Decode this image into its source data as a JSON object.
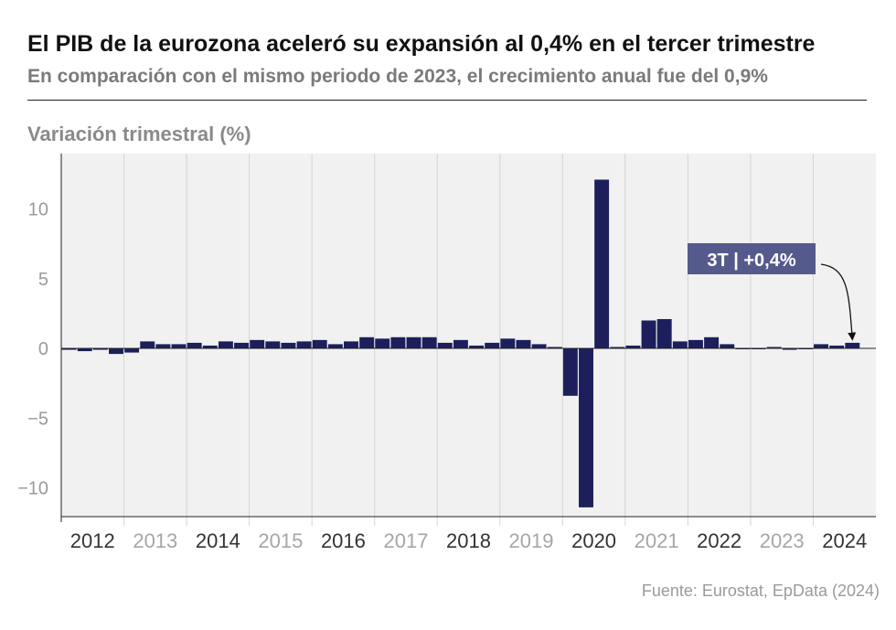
{
  "header": {
    "title": "El PIB de la eurozona aceleró su expansión al 0,4% en el tercer trimestre",
    "subtitle": "En comparación con el mismo periodo de 2023, el crecimiento anual fue del 0,9%"
  },
  "footer": {
    "source": "Fuente: Eurostat, EpData (2024)"
  },
  "colors": {
    "bar": "#1c1f5c",
    "callout": "#555a8c",
    "plot_bg": "#f1f1f1",
    "year_dark": "#333333",
    "year_light": "#a6a6a6"
  },
  "chart_data": {
    "type": "bar",
    "ylabel": "Variación trimestral (%)",
    "ylim": [
      -12,
      13.5
    ],
    "yticks": [
      10,
      5,
      0,
      -5,
      -10
    ],
    "ytick_labels": [
      "10",
      "5",
      "0",
      "−5",
      "−10"
    ],
    "years": [
      "2012",
      "2013",
      "2014",
      "2015",
      "2016",
      "2017",
      "2018",
      "2019",
      "2020",
      "2021",
      "2022",
      "2023",
      "2024"
    ],
    "quarters": [
      "2012T1",
      "2012T2",
      "2012T3",
      "2012T4",
      "2013T1",
      "2013T2",
      "2013T3",
      "2013T4",
      "2014T1",
      "2014T2",
      "2014T3",
      "2014T4",
      "2015T1",
      "2015T2",
      "2015T3",
      "2015T4",
      "2016T1",
      "2016T2",
      "2016T3",
      "2016T4",
      "2017T1",
      "2017T2",
      "2017T3",
      "2017T4",
      "2018T1",
      "2018T2",
      "2018T3",
      "2018T4",
      "2019T1",
      "2019T2",
      "2019T3",
      "2019T4",
      "2020T1",
      "2020T2",
      "2020T3",
      "2020T4",
      "2021T1",
      "2021T2",
      "2021T3",
      "2021T4",
      "2022T1",
      "2022T2",
      "2022T3",
      "2022T4",
      "2023T1",
      "2023T2",
      "2023T3",
      "2023T4",
      "2024T1",
      "2024T2",
      "2024T3"
    ],
    "values": [
      -0.1,
      -0.2,
      -0.1,
      -0.4,
      -0.3,
      0.5,
      0.3,
      0.3,
      0.4,
      0.2,
      0.5,
      0.4,
      0.6,
      0.5,
      0.4,
      0.5,
      0.6,
      0.3,
      0.5,
      0.8,
      0.7,
      0.8,
      0.8,
      0.8,
      0.4,
      0.6,
      0.2,
      0.4,
      0.7,
      0.6,
      0.3,
      0.1,
      -3.4,
      -11.4,
      12.1,
      0.1,
      0.2,
      2.0,
      2.1,
      0.5,
      0.6,
      0.8,
      0.3,
      0.0,
      0.0,
      0.1,
      -0.1,
      0.0,
      0.3,
      0.2,
      0.4
    ],
    "annotation": {
      "label": "3T | +0,4%",
      "quarter": "2024T3"
    },
    "grid": true
  }
}
